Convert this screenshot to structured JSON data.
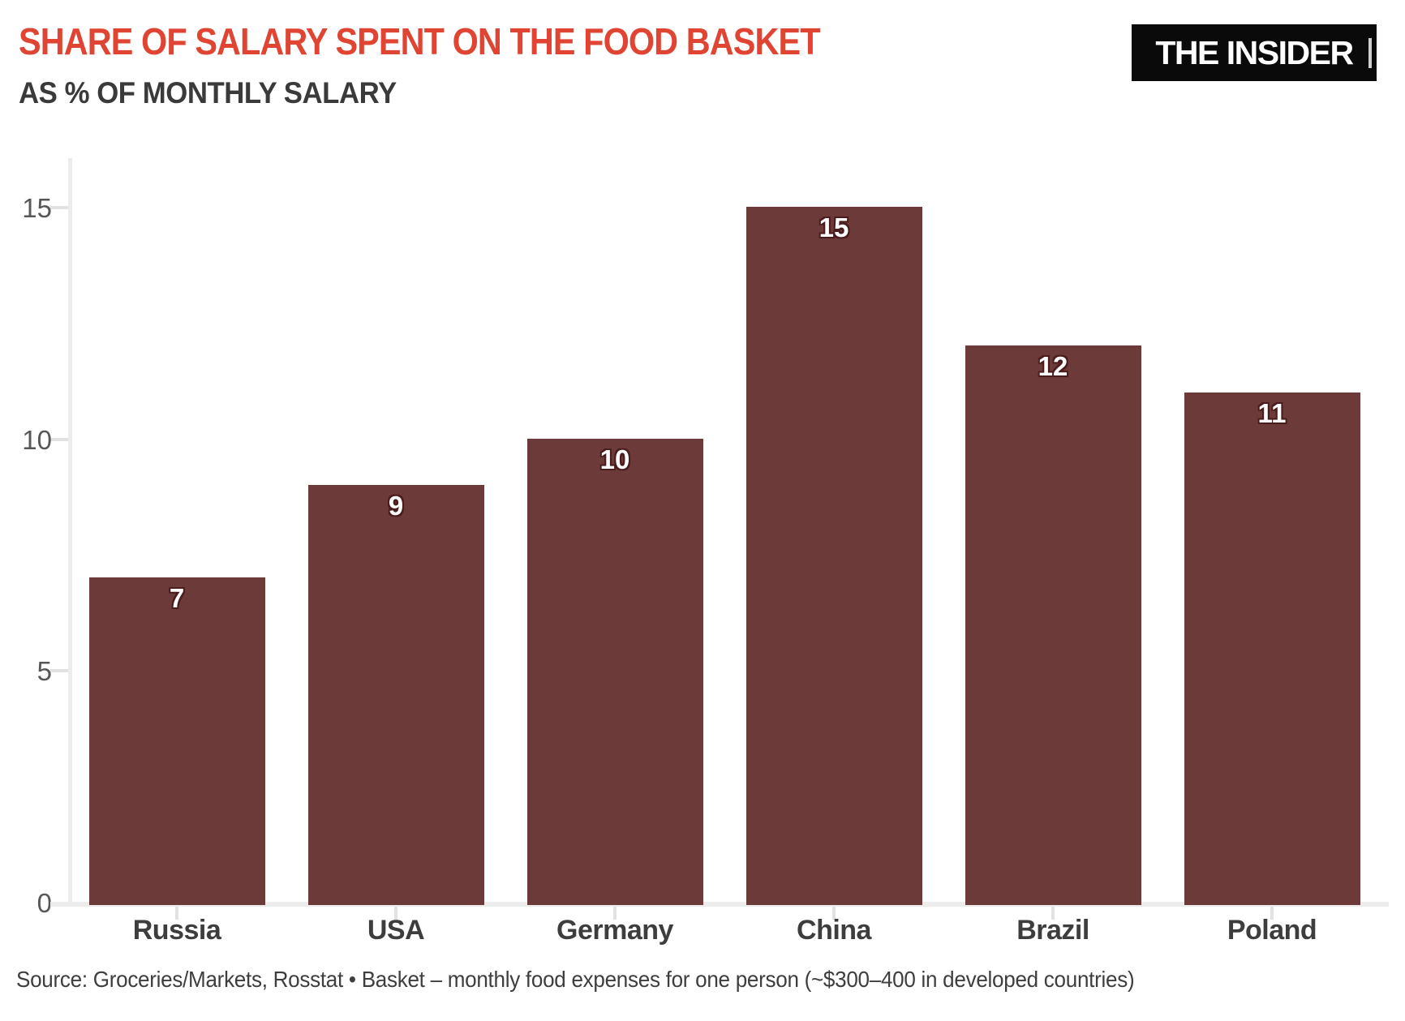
{
  "header": {
    "title": "SHARE OF SALARY SPENT ON THE FOOD BASKET",
    "subtitle": "AS % OF MONTHLY SALARY",
    "logo_text": "THE INSIDER"
  },
  "chart_data": {
    "type": "bar",
    "title": "SHARE OF SALARY SPENT ON THE FOOD BASKET",
    "subtitle": "AS % OF MONTHLY SALARY",
    "categories": [
      "Russia",
      "USA",
      "Germany",
      "China",
      "Brazil",
      "Poland"
    ],
    "values": [
      7,
      9,
      10,
      15,
      12,
      11
    ],
    "xlabel": "",
    "ylabel": "",
    "yticks": [
      0,
      5,
      10,
      15
    ],
    "ylim": [
      0,
      16
    ],
    "grid": false,
    "legend": false,
    "bar_color": "#6c3a39",
    "value_label_color": "#ffffff",
    "value_label_outline": "#4a1d1c"
  },
  "colors": {
    "title_red": "#e04433",
    "subtitle_gray": "#3a3a3a",
    "axis_line": "#ececec",
    "tick_label": "#575757",
    "logo_bg": "#0a0a0a",
    "logo_fg": "#ffffff"
  },
  "footer": {
    "source": "Source: Groceries/Markets, Rosstat • Basket – monthly food expenses for one person (~$300–400 in developed countries)"
  }
}
